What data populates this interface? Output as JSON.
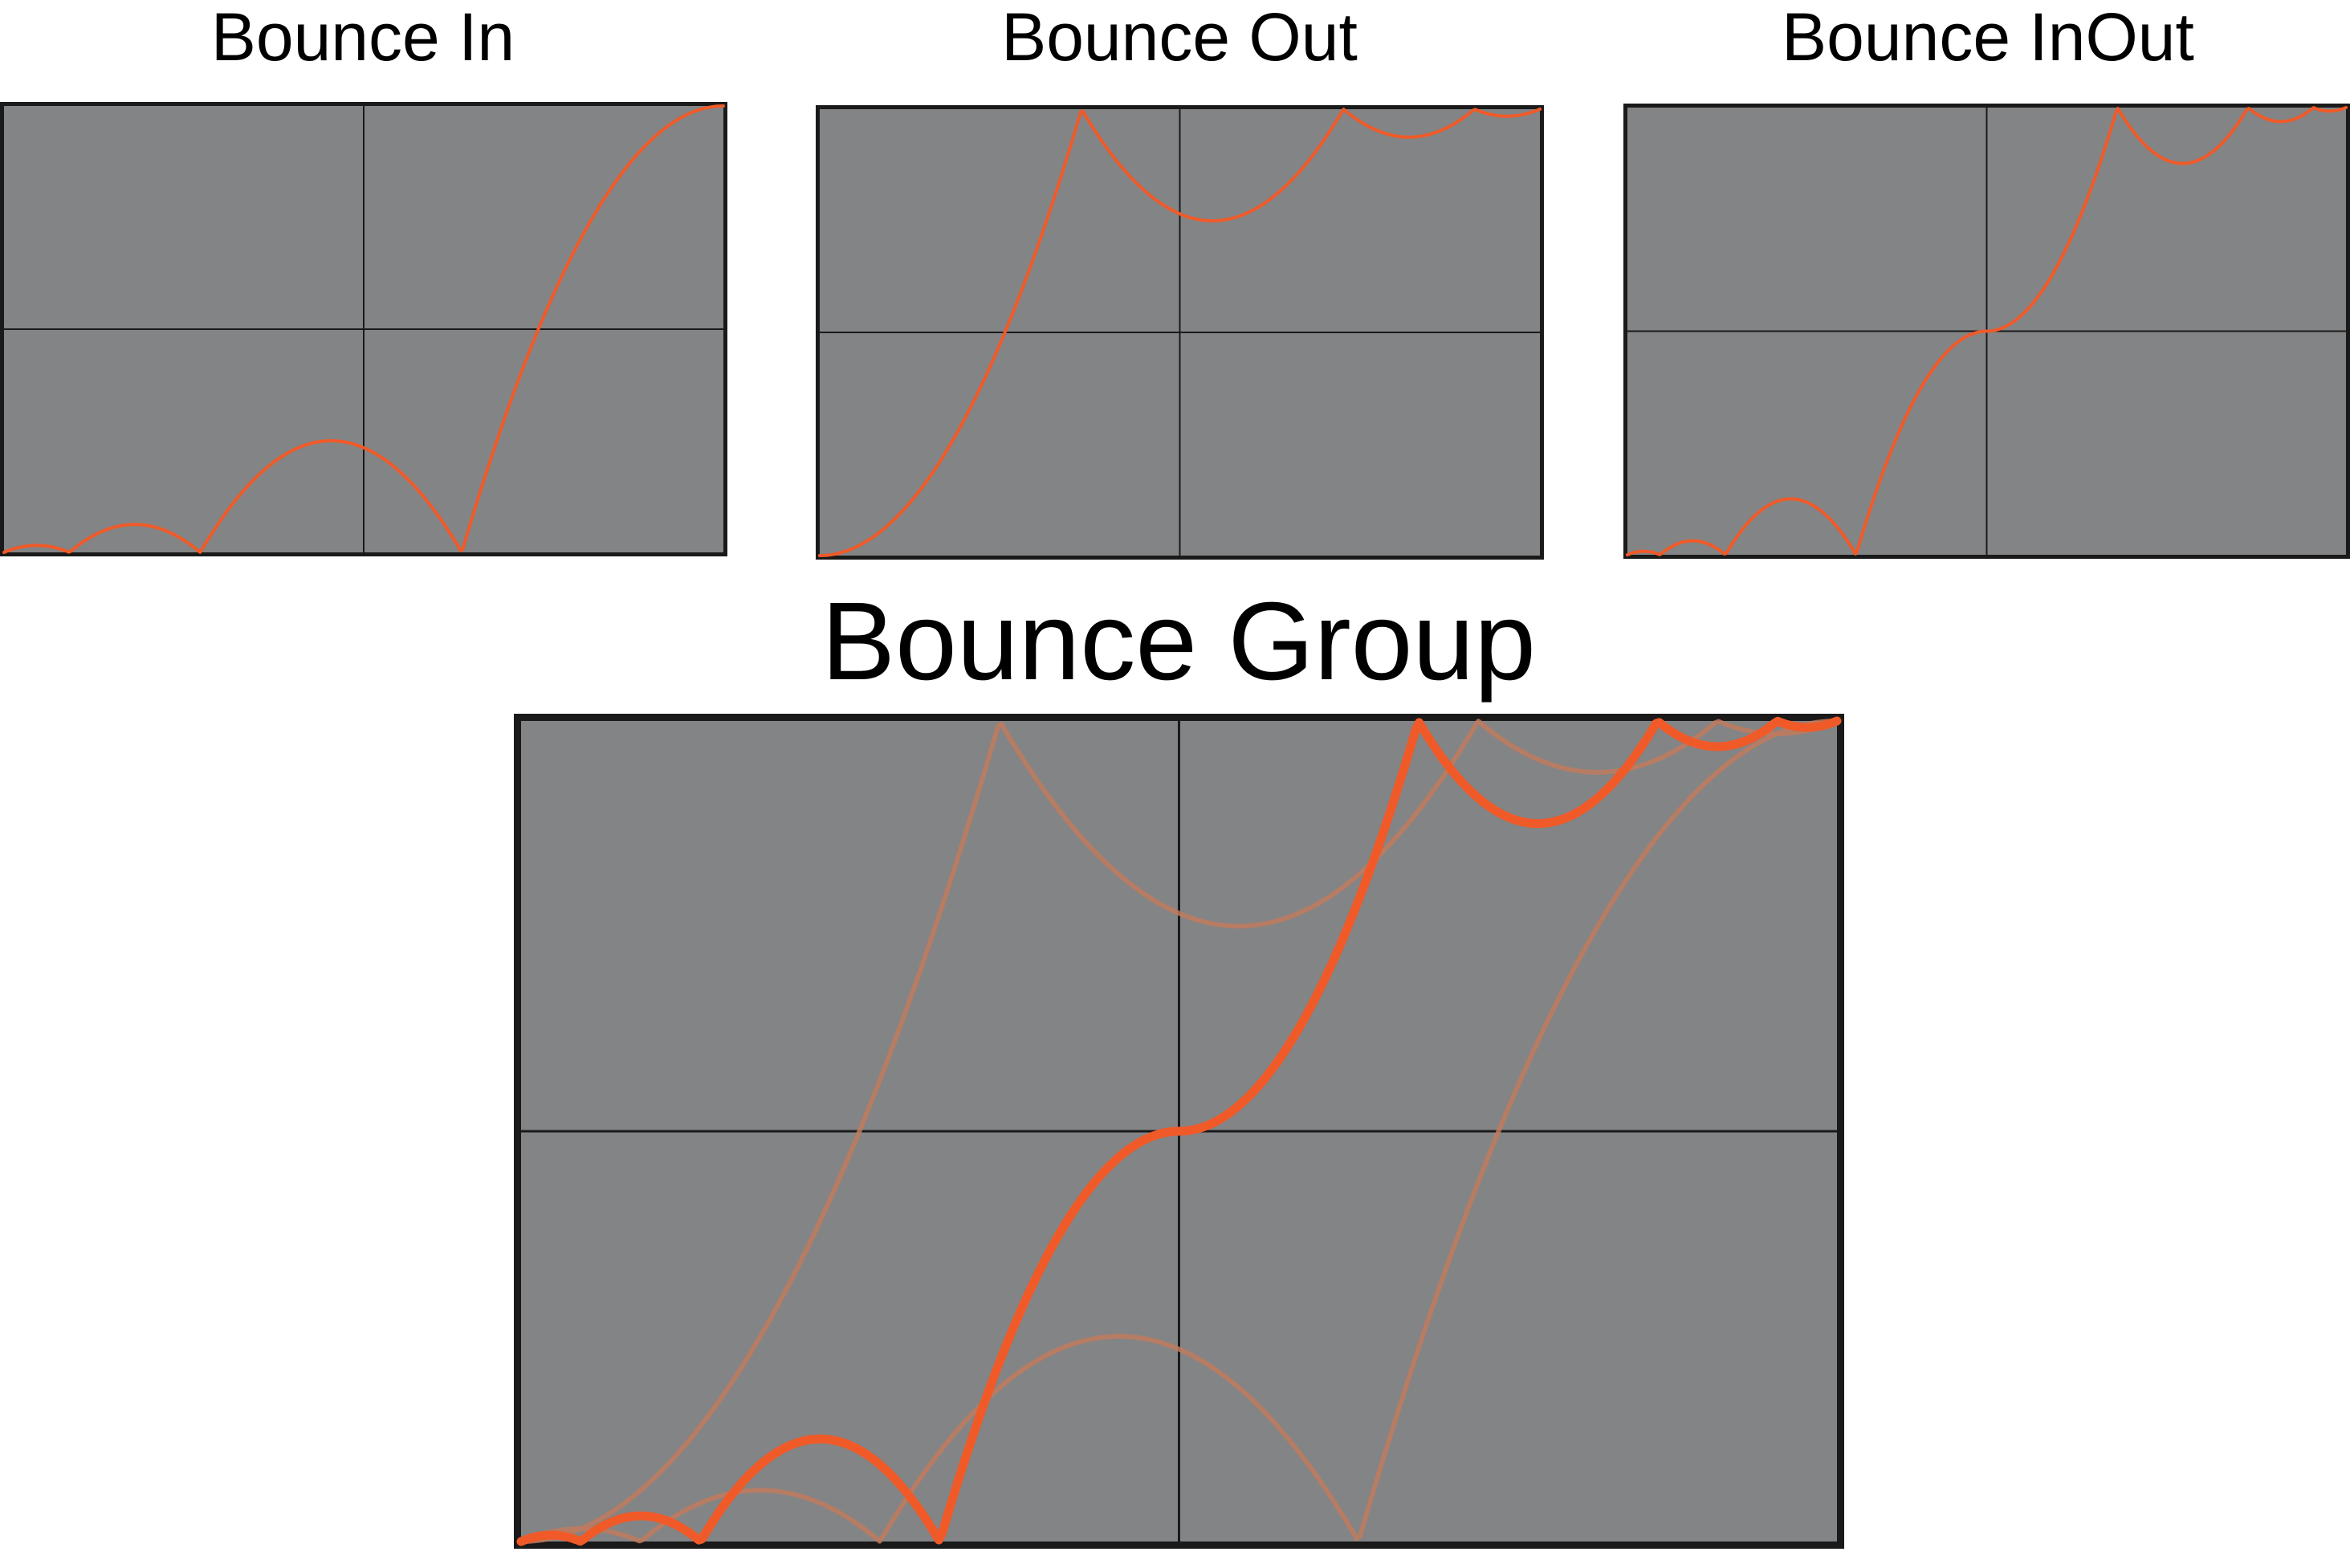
{
  "titles": {
    "bounce_in": "Bounce In",
    "bounce_out": "Bounce Out",
    "bounce_inout": "Bounce InOut",
    "bounce_group": "Bounce Group"
  },
  "colors": {
    "panel_background": "#838486",
    "frame": "#1a1a1a",
    "grid": "#1a1a1a",
    "curve": "#f05a28",
    "group_faded_curve": "#c07a5e",
    "text": "#000000"
  },
  "chart_data": [
    {
      "type": "line",
      "title": "Bounce In",
      "xlabel": "",
      "ylabel": "",
      "xlim": [
        0,
        1
      ],
      "ylim": [
        0,
        1
      ],
      "grid": true,
      "grid_divisions": 2,
      "series": [
        {
          "easing": "bounce-in",
          "highlighted": true,
          "samples": 400
        }
      ]
    },
    {
      "type": "line",
      "title": "Bounce Out",
      "xlabel": "",
      "ylabel": "",
      "xlim": [
        0,
        1
      ],
      "ylim": [
        0,
        1
      ],
      "grid": true,
      "grid_divisions": 2,
      "series": [
        {
          "easing": "bounce-out",
          "highlighted": true,
          "samples": 400
        }
      ]
    },
    {
      "type": "line",
      "title": "Bounce InOut",
      "xlabel": "",
      "ylabel": "",
      "xlim": [
        0,
        1
      ],
      "ylim": [
        0,
        1
      ],
      "grid": true,
      "grid_divisions": 2,
      "series": [
        {
          "easing": "bounce-inout",
          "highlighted": true,
          "samples": 400
        }
      ]
    },
    {
      "type": "line",
      "title": "Bounce Group",
      "xlabel": "",
      "ylabel": "",
      "xlim": [
        0,
        1
      ],
      "ylim": [
        0,
        1
      ],
      "grid": true,
      "grid_divisions": 2,
      "series": [
        {
          "easing": "bounce-in",
          "highlighted": false,
          "samples": 400
        },
        {
          "easing": "bounce-out",
          "highlighted": false,
          "samples": 400
        },
        {
          "easing": "bounce-inout",
          "highlighted": true,
          "samples": 400
        }
      ]
    }
  ]
}
